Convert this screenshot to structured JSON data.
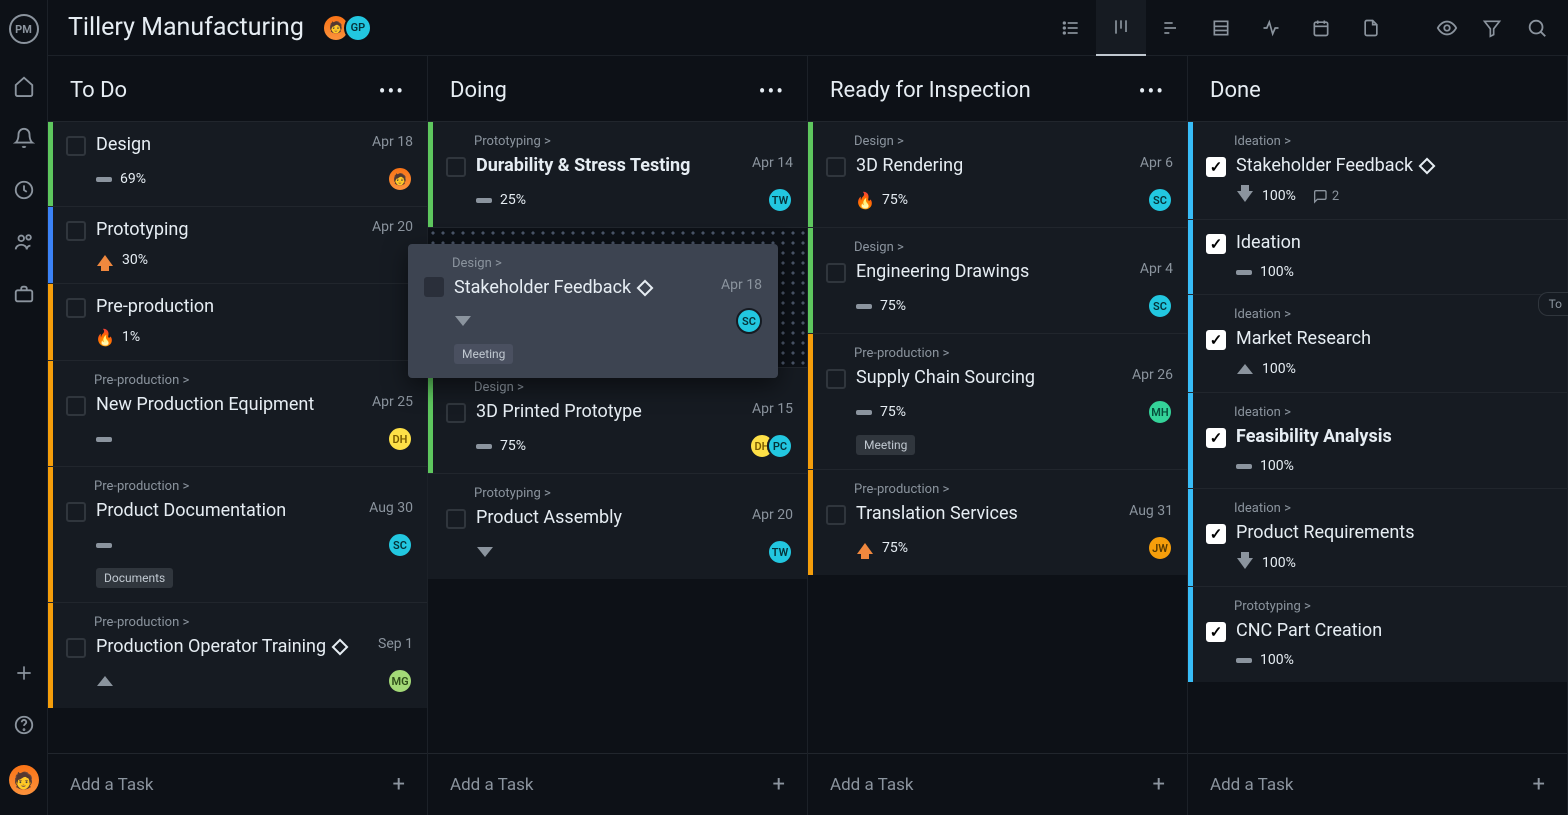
{
  "app": {
    "logo": "PM",
    "title": "Tillery Manufacturing"
  },
  "header_avatars": [
    {
      "bg": "linear-gradient(#f97316,#fb923c)",
      "label": ""
    },
    {
      "bg": "#22c7e0",
      "label": "GP",
      "color": "#05323a"
    }
  ],
  "colors": {
    "stripe_green": "#5ec75e",
    "stripe_blue": "#3b82f6",
    "stripe_orange": "#f59e0b",
    "stripe_lightblue": "#38bdf8"
  },
  "columns": [
    {
      "title": "To Do",
      "show_menu": true,
      "add_label": "Add a Task",
      "cards": [
        {
          "stripe": "#5ec75e",
          "title": "Design",
          "date": "Apr 18",
          "pct": "69%",
          "priority": "bar",
          "avatars": [
            {
              "bg": "linear-gradient(#f97316,#fb923c)",
              "label": ""
            }
          ]
        },
        {
          "stripe": "#3b82f6",
          "title": "Prototyping",
          "date": "Apr 20",
          "pct": "30%",
          "priority": "up-orange",
          "avatars": []
        },
        {
          "stripe": "#f59e0b",
          "title": "Pre-production",
          "date": "",
          "pct": "1%",
          "priority": "fire",
          "avatars": []
        },
        {
          "stripe": "#f59e0b",
          "breadcrumb": "Pre-production >",
          "title": "New Production Equipment",
          "date": "Apr 25",
          "pct": "",
          "priority": "bar",
          "avatars": [
            {
              "bg": "#fde047",
              "label": "DH",
              "color": "#7a5c00"
            }
          ]
        },
        {
          "stripe": "#f59e0b",
          "breadcrumb": "Pre-production >",
          "title": "Product Documentation",
          "date": "Aug 30",
          "pct": "",
          "priority": "bar",
          "avatars": [
            {
              "bg": "#22c7e0",
              "label": "SC",
              "color": "#053238"
            }
          ],
          "tag": "Documents"
        },
        {
          "stripe": "#f59e0b",
          "breadcrumb": "Pre-production >",
          "title": "Production Operator Training",
          "diamond": true,
          "date": "Sep 1",
          "pct": "",
          "priority": "tri-up",
          "avatars": [
            {
              "bg": "#a3d977",
              "label": "MG",
              "color": "#2f4f1a"
            }
          ]
        }
      ]
    },
    {
      "title": "Doing",
      "show_menu": true,
      "add_label": "Add a Task",
      "has_placeholder": true,
      "cards": [
        {
          "stripe": "#5ec75e",
          "breadcrumb": "Prototyping >",
          "title": "Durability & Stress Testing",
          "bold": true,
          "date": "Apr 14",
          "pct": "25%",
          "priority": "bar",
          "avatars": [
            {
              "bg": "#22c7e0",
              "label": "TW",
              "color": "#053238"
            }
          ]
        },
        {
          "placeholder": true
        },
        {
          "stripe": "#5ec75e",
          "breadcrumb": "Design >",
          "title": "3D Printed Prototype",
          "date": "Apr 15",
          "pct": "75%",
          "priority": "bar",
          "avatars": [
            {
              "bg": "#fde047",
              "label": "DH",
              "color": "#7a5c00"
            },
            {
              "bg": "#22c7e0",
              "label": "PC",
              "color": "#053238"
            }
          ]
        },
        {
          "stripe": "",
          "breadcrumb": "Prototyping >",
          "title": "Product Assembly",
          "date": "Apr 20",
          "pct": "",
          "priority": "tri-down",
          "avatars": [
            {
              "bg": "#22c7e0",
              "label": "TW",
              "color": "#053238"
            }
          ]
        }
      ]
    },
    {
      "title": "Ready for Inspection",
      "show_menu": true,
      "add_label": "Add a Task",
      "cards": [
        {
          "stripe": "#5ec75e",
          "breadcrumb": "Design >",
          "title": "3D Rendering",
          "date": "Apr 6",
          "pct": "75%",
          "priority": "fire",
          "avatars": [
            {
              "bg": "#22c7e0",
              "label": "SC",
              "color": "#053238"
            }
          ]
        },
        {
          "stripe": "#5ec75e",
          "breadcrumb": "Design >",
          "title": "Engineering Drawings",
          "date": "Apr 4",
          "pct": "75%",
          "priority": "bar",
          "avatars": [
            {
              "bg": "#22c7e0",
              "label": "SC",
              "color": "#053238"
            }
          ]
        },
        {
          "stripe": "#f59e0b",
          "breadcrumb": "Pre-production >",
          "title": "Supply Chain Sourcing",
          "date": "Apr 26",
          "pct": "75%",
          "priority": "bar",
          "avatars": [
            {
              "bg": "#34d399",
              "label": "MH",
              "color": "#064e3b"
            }
          ],
          "tag": "Meeting"
        },
        {
          "stripe": "#f59e0b",
          "breadcrumb": "Pre-production >",
          "title": "Translation Services",
          "date": "Aug 31",
          "pct": "75%",
          "priority": "up-orange",
          "avatars": [
            {
              "bg": "#f59e0b",
              "label": "JW",
              "color": "#5a3b00"
            }
          ]
        }
      ]
    },
    {
      "title": "Done",
      "show_menu": false,
      "add_label": "Add a Task",
      "cards": [
        {
          "stripe": "#38bdf8",
          "breadcrumb": "Ideation >",
          "title": "Stakeholder Feedback",
          "diamond": true,
          "done": true,
          "pct": "100%",
          "priority": "down-gray",
          "comments": "2"
        },
        {
          "stripe": "#38bdf8",
          "title": "Ideation",
          "done": true,
          "pct": "100%",
          "priority": "bar"
        },
        {
          "stripe": "#38bdf8",
          "breadcrumb": "Ideation >",
          "title": "Market Research",
          "done": true,
          "pct": "100%",
          "priority": "tri-up"
        },
        {
          "stripe": "#38bdf8",
          "breadcrumb": "Ideation >",
          "title": "Feasibility Analysis",
          "bold": true,
          "done": true,
          "pct": "100%",
          "priority": "bar"
        },
        {
          "stripe": "#38bdf8",
          "breadcrumb": "Ideation >",
          "title": "Product Requirements",
          "done": true,
          "pct": "100%",
          "priority": "down-gray"
        },
        {
          "stripe": "#38bdf8",
          "breadcrumb": "Prototyping >",
          "title": "CNC Part Creation",
          "done": true,
          "pct": "100%",
          "priority": "bar"
        }
      ]
    }
  ],
  "dragging": {
    "breadcrumb": "Design >",
    "title": "Stakeholder Feedback",
    "date": "Apr 18",
    "tag": "Meeting",
    "avatar": {
      "bg": "#22c7e0",
      "label": "SC",
      "color": "#053238"
    }
  },
  "to_badge": "To"
}
